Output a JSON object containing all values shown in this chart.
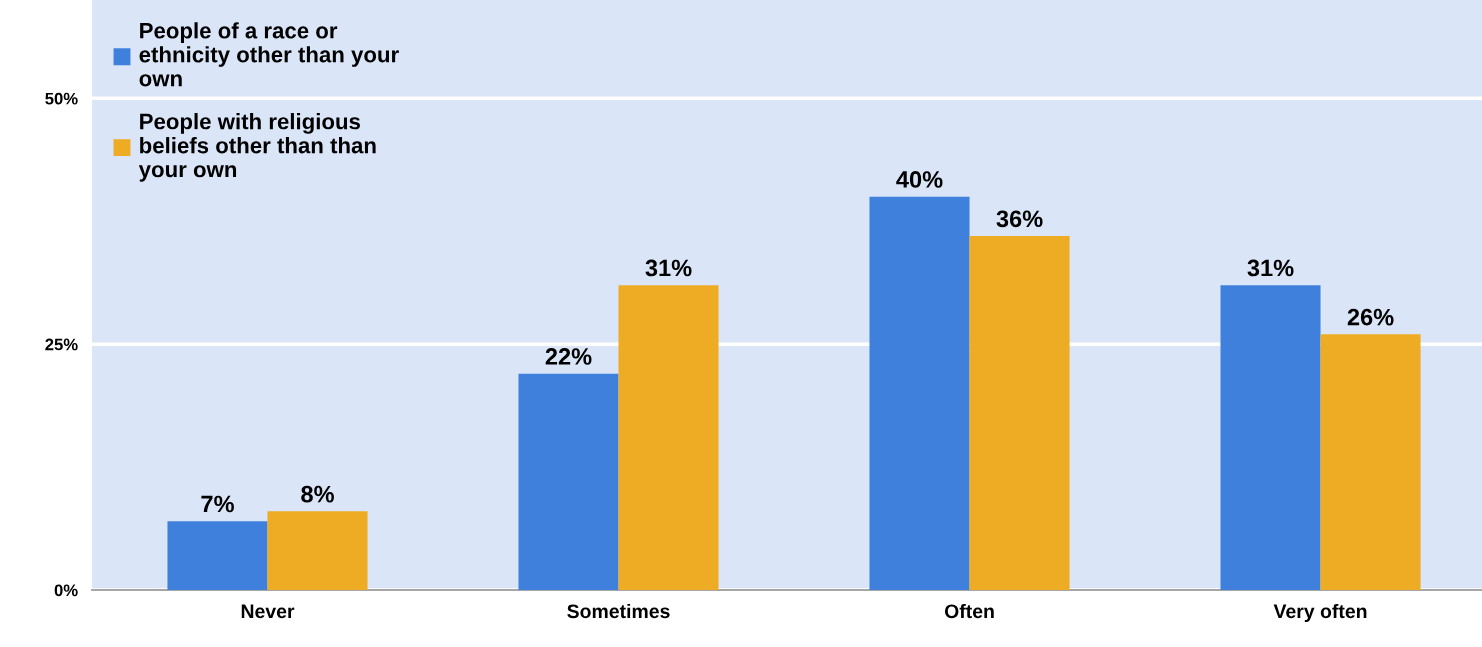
{
  "chart_data": {
    "type": "bar",
    "categories": [
      "Never",
      "Sometimes",
      "Often",
      "Very often"
    ],
    "series": [
      {
        "name": "People of a race or ethnicity other than your own",
        "color": "#3f80dc",
        "values": [
          7,
          22,
          40,
          31
        ],
        "value_labels": [
          "7%",
          "22%",
          "40%",
          "31%"
        ]
      },
      {
        "name": "People with religious beliefs other than than your own",
        "color": "#eeab24",
        "values": [
          8,
          31,
          36,
          26
        ],
        "value_labels": [
          "8%",
          "31%",
          "36%",
          "26%"
        ]
      }
    ],
    "ylim": [
      0,
      60
    ],
    "yticks": [
      {
        "value": 0,
        "label": "0%"
      },
      {
        "value": 25,
        "label": "25%"
      },
      {
        "value": 50,
        "label": "50%"
      }
    ],
    "grid": "y",
    "legend": "top left"
  }
}
